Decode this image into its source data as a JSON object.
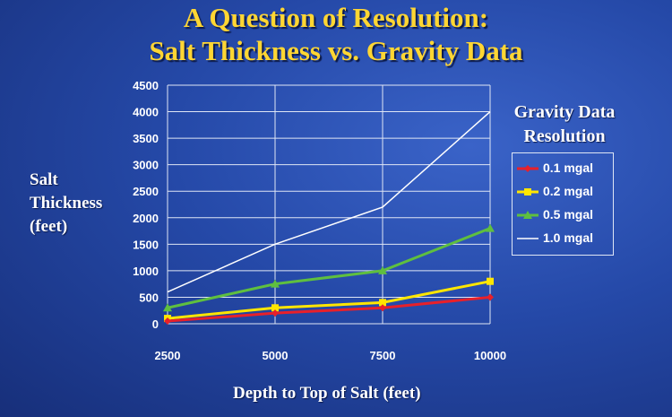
{
  "chart_data": {
    "type": "line",
    "title": "A Question of Resolution:",
    "subtitle": "Salt Thickness vs. Gravity Data",
    "xlabel": "Depth to Top of Salt (feet)",
    "ylabel": "Salt Thickness (feet)",
    "x": [
      2500,
      5000,
      7500,
      10000
    ],
    "ylim": [
      0,
      4500
    ],
    "yticks": [
      0,
      500,
      1000,
      1500,
      2000,
      2500,
      3000,
      3500,
      4000,
      4500
    ],
    "grid": true,
    "legend": {
      "title": "Gravity Data Resolution",
      "placement": "right"
    },
    "series": [
      {
        "name": "0.1 mgal",
        "values": [
          50,
          200,
          300,
          500
        ],
        "color": "#e8202a",
        "marker": "diamond"
      },
      {
        "name": "0.2 mgal",
        "values": [
          100,
          300,
          400,
          800
        ],
        "color": "#ffe600",
        "marker": "square"
      },
      {
        "name": "0.5 mgal",
        "values": [
          300,
          750,
          1000,
          1800
        ],
        "color": "#5fbf3f",
        "marker": "triangle"
      },
      {
        "name": "1.0 mgal",
        "values": [
          600,
          1500,
          2200,
          4000
        ],
        "color": "#ffffff",
        "marker": "none"
      }
    ]
  }
}
